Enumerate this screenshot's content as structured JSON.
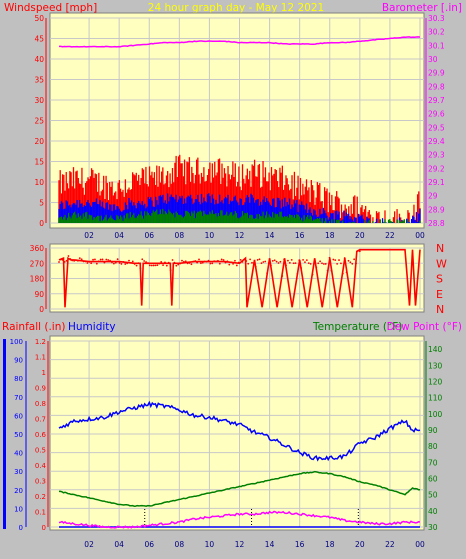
{
  "header": {
    "title": "24 hour graph day - May 12 2021",
    "wind_label": "Windspeed [mph]",
    "baro_label": "Barometer [.in]"
  },
  "mid_header": {
    "rain_label": "Rainfall (.in)",
    "humidity_label": "Humidity",
    "temp_label": "Temperature (°F)",
    "dew_label": "Dew Point (°F)"
  },
  "colors": {
    "background": "#c0c0c0",
    "plot_bg": "#ffffc0",
    "wind_axis": "#ff0000",
    "baro_axis": "#ff00ff",
    "title": "#ffff00",
    "wind_gust": "#ff0000",
    "wind_avg": "#0000ff",
    "wind_min": "#008000",
    "barometer": "#ff00ff",
    "direction": "#ff0000",
    "humidity": "#0000ff",
    "rain": "#0000ff",
    "temperature": "#008000",
    "dewpoint": "#ff00ff"
  },
  "chart_data": [
    {
      "type": "bar",
      "title": "24 hour graph day - May 12 2021",
      "ylabel": "Windspeed [mph]",
      "y2label": "Barometer [.in]",
      "ylim": [
        0,
        50
      ],
      "yticks": [
        0,
        5,
        10,
        15,
        20,
        25,
        30,
        35,
        40,
        45,
        50
      ],
      "y2lim": [
        28.8,
        30.3
      ],
      "y2ticks": [
        "28.8",
        "28.9",
        "29",
        "29.1",
        "29.2",
        "29.3",
        "29.4",
        "29.5",
        "29.6",
        "29.7",
        "29.8",
        "29.9",
        "30",
        "30.1",
        "30.2",
        "30.3"
      ],
      "xticks": [
        "02",
        "04",
        "06",
        "08",
        "10",
        "12",
        "14",
        "16",
        "18",
        "20",
        "22",
        "00"
      ],
      "x": [
        0,
        1,
        2,
        3,
        4,
        5,
        6,
        7,
        8,
        9,
        10,
        11,
        12,
        13,
        14,
        15,
        16,
        17,
        18,
        19,
        20,
        21,
        22,
        23,
        24
      ],
      "series": [
        {
          "name": "gust",
          "values": [
            9,
            10,
            10,
            9,
            8,
            10,
            10,
            11,
            13,
            12,
            13,
            12,
            11,
            12,
            11,
            10,
            8,
            7,
            5,
            4,
            3,
            1,
            0,
            0,
            5
          ]
        },
        {
          "name": "average",
          "values": [
            4,
            5,
            5,
            4,
            4,
            5,
            5,
            6,
            6,
            6,
            6,
            6,
            5,
            6,
            5,
            5,
            4,
            3,
            2,
            2,
            1,
            0,
            0,
            0,
            2
          ]
        },
        {
          "name": "minimum",
          "values": [
            1,
            2,
            2,
            1,
            1,
            2,
            2,
            3,
            2,
            2,
            3,
            2,
            2,
            2,
            2,
            2,
            1,
            1,
            0,
            0,
            0,
            0,
            0,
            0,
            0
          ]
        },
        {
          "name": "barometer",
          "values": [
            30.09,
            30.09,
            30.09,
            30.09,
            30.09,
            30.1,
            30.11,
            30.12,
            30.12,
            30.13,
            30.13,
            30.13,
            30.12,
            30.12,
            30.12,
            30.11,
            30.11,
            30.11,
            30.12,
            30.12,
            30.13,
            30.14,
            30.15,
            30.16,
            30.16
          ]
        }
      ],
      "grid": true
    },
    {
      "type": "line",
      "yticks": [
        "360",
        "270",
        "180",
        "90",
        "0"
      ],
      "ylim": [
        0,
        360
      ],
      "right_labels": [
        "N",
        "W",
        "S",
        "E",
        "N"
      ],
      "xticks": [],
      "x": [
        0,
        0.3,
        0.4,
        0.6,
        0.8,
        1,
        2,
        3,
        4,
        5,
        5.4,
        5.5,
        5.6,
        6,
        7,
        7.4,
        7.5,
        7.6,
        8,
        9,
        10,
        11,
        12,
        12.4,
        12.5,
        13,
        13.5,
        14,
        14.5,
        15,
        15.5,
        16,
        16.5,
        17,
        17.5,
        18,
        18.5,
        19,
        19.5,
        19.8,
        20,
        21,
        22,
        23,
        23.3,
        23.5,
        23.7,
        24
      ],
      "series": [
        {
          "name": "direction",
          "values": [
            290,
            300,
            10,
            300,
            290,
            290,
            280,
            280,
            280,
            270,
            270,
            20,
            270,
            270,
            270,
            270,
            20,
            270,
            270,
            280,
            280,
            280,
            270,
            300,
            10,
            290,
            10,
            300,
            10,
            300,
            10,
            290,
            10,
            300,
            10,
            300,
            10,
            300,
            10,
            340,
            350,
            350,
            350,
            350,
            20,
            350,
            20,
            350
          ]
        }
      ],
      "grid": true
    },
    {
      "type": "line",
      "ylabel": "Rainfall (.in)",
      "ylabel2": "Humidity",
      "y2label": "Temperature (°F)",
      "y3label": "Dew Point (°F)",
      "humidity_ticks": [
        "0",
        "10",
        "20",
        "30",
        "40",
        "50",
        "60",
        "70",
        "80",
        "90",
        "100"
      ],
      "rain_ticks": [
        "0",
        "0.1",
        "0.2",
        "0.3",
        "0.4",
        "0.5",
        "0.6",
        "0.7",
        "0.8",
        "0.9",
        "1",
        "1.1",
        "1.2"
      ],
      "temp_ticks": [
        "30",
        "40",
        "50",
        "60",
        "70",
        "80",
        "90",
        "100",
        "110",
        "120",
        "130",
        "140"
      ],
      "ylim_humidity": [
        0,
        100
      ],
      "ylim_rain": [
        0,
        1.2
      ],
      "ylim_temp": [
        30,
        145
      ],
      "xticks": [
        "02",
        "04",
        "06",
        "08",
        "10",
        "12",
        "14",
        "16",
        "18",
        "20",
        "22",
        "00"
      ],
      "x": [
        0,
        1,
        2,
        3,
        4,
        5,
        6,
        7,
        8,
        9,
        10,
        11,
        12,
        13,
        14,
        15,
        16,
        17,
        18,
        19,
        20,
        21,
        22,
        23,
        23.5,
        24
      ],
      "series": [
        {
          "name": "Humidity",
          "values": [
            53,
            57,
            58,
            59,
            62,
            64,
            66,
            65,
            63,
            60,
            59,
            57,
            55,
            51,
            48,
            44,
            40,
            37,
            37,
            38,
            45,
            48,
            53,
            57,
            52,
            52
          ]
        },
        {
          "name": "Temperature",
          "values": [
            52,
            50,
            48,
            46,
            44,
            43,
            43,
            45,
            47,
            49,
            51,
            53,
            55,
            57,
            59,
            61,
            63,
            64,
            63,
            61,
            58,
            56,
            53,
            50,
            54,
            53
          ]
        },
        {
          "name": "Dew Point",
          "values": [
            33,
            32,
            31,
            30,
            30,
            30,
            31,
            32,
            33,
            35,
            36,
            37,
            38,
            38,
            39,
            39,
            38,
            37,
            36,
            34,
            33,
            32,
            32,
            33,
            33,
            33
          ]
        },
        {
          "name": "Rainfall",
          "values": [
            0,
            0,
            0,
            0,
            0,
            0,
            0,
            0,
            0,
            0,
            0,
            0,
            0,
            0,
            0,
            0,
            0,
            0,
            0,
            0,
            0,
            0,
            0,
            0,
            0,
            0
          ]
        }
      ],
      "grid": true
    }
  ]
}
